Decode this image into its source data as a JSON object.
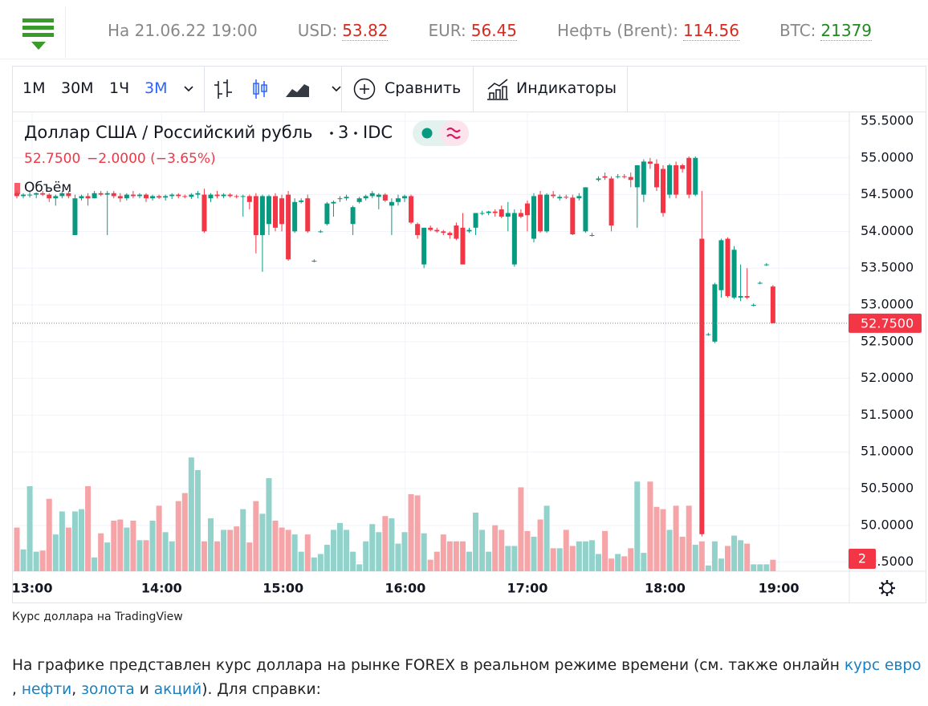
{
  "header": {
    "date": "На 21.06.22 19:00",
    "quotes": [
      {
        "label": "USD:",
        "value": "53.82",
        "color": "#d42a20"
      },
      {
        "label": "EUR:",
        "value": "56.45",
        "color": "#d42a20"
      },
      {
        "label": "Нефть (Brent):",
        "value": "114.56",
        "color": "#d42a20"
      },
      {
        "label": "BTC:",
        "value": "21379",
        "color": "#1f8a1f"
      }
    ]
  },
  "toolbar": {
    "intervals": [
      "1M",
      "30M",
      "1Ч",
      "3М"
    ],
    "active": 3,
    "compare": "Сравнить",
    "indicators": "Индикаторы"
  },
  "chart_data": {
    "type": "candlestick",
    "title": "Доллар США / Российский рубль",
    "interval": "3",
    "source": "IDC",
    "last": "52.7500",
    "change": "−2.0000 (−3.65%)",
    "volume_title": "Объём",
    "up_color": "#089981",
    "down_color": "#f23645",
    "volume_up_color": "#92d2cb",
    "volume_down_color": "#f5a5a8",
    "ylim": [
      49.376,
      55.631
    ],
    "volume_lim": [
      0,
      40
    ],
    "yticks": [
      {
        "value": 55.5,
        "label": "55.5000"
      },
      {
        "value": 55,
        "label": "55.0000"
      },
      {
        "value": 54.5,
        "label": "54.5000"
      },
      {
        "value": 54,
        "label": "54.0000"
      },
      {
        "value": 53.5,
        "label": "53.5000"
      },
      {
        "value": 53,
        "label": "53.0000"
      },
      {
        "value": 52.5,
        "label": "52.5000"
      },
      {
        "value": 52,
        "label": "52.0000"
      },
      {
        "value": 51.5,
        "label": "51.5000"
      },
      {
        "value": 51,
        "label": "51.0000"
      },
      {
        "value": 50.5,
        "label": "50.5000"
      },
      {
        "value": 50,
        "label": "50.0000"
      },
      {
        "value": 49.5,
        "label": "49.5000"
      }
    ],
    "xticks": [
      {
        "value": 2.36,
        "label": "13:00"
      },
      {
        "value": 22.4,
        "label": "14:00"
      },
      {
        "value": 41.2,
        "label": "15:00"
      },
      {
        "value": 60.1,
        "label": "16:00"
      },
      {
        "value": 79.0,
        "label": "17:00"
      },
      {
        "value": 100.3,
        "label": "18:00"
      },
      {
        "value": 117.9,
        "label": "19:00"
      }
    ],
    "last_price": {
      "value": 52.75,
      "label": "52.7500"
    },
    "volume_label": "2",
    "ohlc": [
      [
        54.52,
        54.55,
        54.45,
        54.48
      ],
      [
        54.48,
        54.52,
        54.45,
        54.5
      ],
      [
        54.5,
        54.55,
        54.46,
        54.5
      ],
      [
        54.5,
        54.53,
        54.45,
        54.52
      ],
      [
        54.52,
        54.55,
        54.48,
        54.5
      ],
      [
        54.5,
        54.52,
        54.4,
        54.45
      ],
      [
        54.45,
        54.5,
        54.35,
        54.48
      ],
      [
        54.48,
        54.55,
        54.45,
        54.52
      ],
      [
        54.52,
        54.55,
        54.45,
        54.48
      ],
      [
        53.95,
        54.5,
        53.95,
        54.45
      ],
      [
        54.45,
        54.5,
        54.42,
        54.48
      ],
      [
        54.48,
        54.52,
        54.35,
        54.45
      ],
      [
        54.45,
        54.55,
        54.45,
        54.52
      ],
      [
        54.52,
        54.55,
        54.48,
        54.5
      ],
      [
        54.5,
        54.55,
        53.95,
        54.52
      ],
      [
        54.52,
        54.55,
        54.45,
        54.48
      ],
      [
        54.48,
        54.52,
        54.4,
        54.45
      ],
      [
        54.45,
        54.52,
        54.42,
        54.5
      ],
      [
        54.5,
        54.55,
        54.45,
        54.48
      ],
      [
        54.48,
        54.52,
        54.45,
        54.5
      ],
      [
        54.5,
        54.52,
        54.4,
        54.45
      ],
      [
        54.45,
        54.5,
        54.42,
        54.48
      ],
      [
        54.48,
        54.5,
        54.44,
        54.46
      ],
      [
        54.46,
        54.5,
        54.42,
        54.48
      ],
      [
        54.48,
        54.52,
        54.44,
        54.5
      ],
      [
        54.5,
        54.52,
        54.45,
        54.48
      ],
      [
        54.48,
        54.5,
        54.45,
        54.47
      ],
      [
        54.47,
        54.52,
        54.44,
        54.5
      ],
      [
        54.5,
        54.55,
        54.45,
        54.52
      ],
      [
        54.5,
        54.58,
        53.98,
        54.0
      ],
      [
        54.45,
        54.52,
        54.4,
        54.5
      ],
      [
        54.5,
        54.55,
        54.45,
        54.48
      ],
      [
        54.48,
        54.52,
        54.45,
        54.5
      ],
      [
        54.5,
        54.52,
        54.46,
        54.48
      ],
      [
        54.48,
        54.5,
        54.45,
        54.47
      ],
      [
        54.47,
        54.5,
        54.2,
        54.48
      ],
      [
        54.48,
        54.5,
        54.3,
        54.4
      ],
      [
        54.48,
        54.52,
        53.7,
        53.95
      ],
      [
        53.95,
        54.5,
        53.45,
        54.48
      ],
      [
        54.1,
        54.5,
        53.95,
        54.48
      ],
      [
        54.48,
        54.52,
        54.0,
        54.05
      ],
      [
        54.45,
        54.5,
        54.0,
        54.1
      ],
      [
        54.5,
        54.55,
        53.6,
        53.62
      ],
      [
        54.0,
        54.45,
        53.98,
        54.4
      ],
      [
        54.4,
        54.45,
        54.38,
        54.42
      ],
      [
        54.45,
        54.5,
        53.98,
        54.0
      ],
      [
        53.6,
        53.62,
        53.58,
        53.6
      ],
      [
        54.0,
        54.02,
        53.98,
        54.0
      ],
      [
        54.1,
        54.4,
        54.08,
        54.38
      ],
      [
        54.38,
        54.42,
        54.2,
        54.4
      ],
      [
        54.45,
        54.48,
        54.4,
        54.45
      ],
      [
        54.45,
        54.5,
        54.42,
        54.47
      ],
      [
        54.1,
        54.35,
        53.95,
        54.33
      ],
      [
        54.4,
        54.47,
        54.38,
        54.45
      ],
      [
        54.45,
        54.5,
        54.42,
        54.48
      ],
      [
        54.48,
        54.55,
        54.45,
        54.52
      ],
      [
        54.47,
        54.52,
        54.3,
        54.5
      ],
      [
        54.5,
        54.52,
        54.4,
        54.42
      ],
      [
        54.35,
        54.45,
        53.95,
        54.4
      ],
      [
        54.4,
        54.5,
        54.35,
        54.45
      ],
      [
        54.45,
        54.5,
        54.4,
        54.48
      ],
      [
        54.48,
        54.5,
        54.1,
        54.12
      ],
      [
        54.1,
        54.12,
        53.9,
        53.95
      ],
      [
        53.55,
        54.05,
        53.5,
        54.05
      ],
      [
        54.05,
        54.08,
        54.0,
        54.02
      ],
      [
        54.02,
        54.05,
        53.98,
        54.0
      ],
      [
        54.0,
        54.02,
        53.95,
        53.98
      ],
      [
        53.98,
        54.0,
        53.9,
        53.95
      ],
      [
        54.08,
        54.12,
        53.88,
        53.9
      ],
      [
        54.05,
        54.25,
        53.55,
        53.55
      ],
      [
        54.0,
        54.05,
        53.98,
        54.02
      ],
      [
        54.05,
        54.25,
        53.95,
        54.25
      ],
      [
        54.25,
        54.28,
        54.22,
        54.25
      ],
      [
        54.25,
        54.28,
        54.22,
        54.27
      ],
      [
        54.27,
        54.3,
        54.2,
        54.25
      ],
      [
        54.3,
        54.35,
        54.18,
        54.2
      ],
      [
        54.2,
        54.4,
        54.0,
        54.25
      ],
      [
        53.55,
        54.3,
        53.52,
        54.25
      ],
      [
        54.25,
        54.3,
        54.18,
        54.2
      ],
      [
        54.38,
        54.42,
        54.0,
        54.22
      ],
      [
        53.9,
        54.52,
        53.85,
        54.48
      ],
      [
        54.5,
        54.55,
        53.98,
        54.0
      ],
      [
        54.0,
        54.52,
        53.98,
        54.5
      ],
      [
        54.5,
        54.55,
        54.45,
        54.48
      ],
      [
        54.45,
        54.5,
        54.42,
        54.47
      ],
      [
        54.47,
        54.5,
        54.44,
        54.46
      ],
      [
        54.46,
        54.5,
        53.95,
        53.96
      ],
      [
        54.45,
        54.52,
        54.42,
        54.48
      ],
      [
        54.0,
        54.6,
        53.98,
        54.6
      ],
      [
        53.95,
        53.98,
        53.93,
        53.95
      ],
      [
        54.7,
        54.75,
        54.68,
        54.72
      ],
      [
        54.75,
        54.8,
        54.7,
        54.73
      ],
      [
        54.72,
        54.75,
        54.0,
        54.08
      ],
      [
        54.75,
        54.78,
        54.72,
        54.75
      ],
      [
        54.75,
        54.78,
        54.72,
        54.74
      ],
      [
        54.74,
        54.8,
        54.6,
        54.7
      ],
      [
        54.6,
        54.9,
        54.05,
        54.9
      ],
      [
        54.5,
        54.98,
        54.4,
        54.95
      ],
      [
        54.95,
        55.0,
        54.85,
        54.92
      ],
      [
        54.92,
        54.98,
        54.55,
        54.6
      ],
      [
        54.85,
        54.9,
        54.2,
        54.25
      ],
      [
        54.5,
        54.92,
        54.45,
        54.9
      ],
      [
        54.9,
        54.95,
        54.45,
        54.5
      ],
      [
        54.9,
        54.92,
        54.8,
        54.85
      ],
      [
        55.0,
        55.02,
        54.45,
        54.5
      ],
      [
        54.5,
        55.02,
        54.48,
        55.0
      ],
      [
        53.9,
        54.55,
        49.85,
        49.88
      ],
      [
        52.6,
        52.62,
        52.58,
        52.6
      ],
      [
        52.5,
        53.3,
        52.48,
        53.28
      ],
      [
        53.2,
        53.9,
        53.1,
        53.88
      ],
      [
        53.9,
        53.92,
        53.1,
        53.12
      ],
      [
        53.1,
        53.8,
        53.08,
        53.75
      ],
      [
        53.1,
        53.55,
        53.05,
        53.12
      ],
      [
        53.12,
        53.5,
        53.08,
        53.1
      ],
      [
        53.0,
        53.02,
        52.98,
        53.0
      ],
      [
        53.3,
        53.32,
        53.28,
        53.3
      ],
      [
        53.55,
        53.57,
        53.53,
        53.55
      ],
      [
        53.25,
        53.27,
        52.75,
        52.75
      ]
    ],
    "volume": [
      3.8,
      1.9,
      7.4,
      1.7,
      1.8,
      6.3,
      3.2,
      5.2,
      3.8,
      5.2,
      5.4,
      7.4,
      1.2,
      3.3,
      2.5,
      4.4,
      4.5,
      3.8,
      4.4,
      2.7,
      2.7,
      4.4,
      5.7,
      3.4,
      2.6,
      6.1,
      6.8,
      9.9,
      8.8,
      2.6,
      4.6,
      2.6,
      3.6,
      3.6,
      3.9,
      5.4,
      2.5,
      6.1,
      5.0,
      8.1,
      4.4,
      3.8,
      3.6,
      3.2,
      1.7,
      3.2,
      1.2,
      1.5,
      2.3,
      3.6,
      4.2,
      3.6,
      1.7,
      0.6,
      2.6,
      4.1,
      3.4,
      4.8,
      4.6,
      2.4,
      3.4,
      6.7,
      6.6,
      3.3,
      1.0,
      1.7,
      3.2,
      2.6,
      2.6,
      2.6,
      1.7,
      5.1,
      3.6,
      1.7,
      4.0,
      3.6,
      2.2,
      2.2,
      7.3,
      3.5,
      3.0,
      4.5,
      5.7,
      2.0,
      2.0,
      3.6,
      2.2,
      2.6,
      2.6,
      2.7,
      1.5,
      3.5,
      1.1,
      1.5,
      1.3,
      2.0,
      7.8,
      1.6,
      7.8,
      5.6,
      5.4,
      3.6,
      5.7,
      3.0,
      5.7,
      2.3,
      2.6,
      0.5,
      2.6,
      1.1,
      2.2,
      3.1,
      2.7,
      2.4,
      0.6,
      0.6,
      0.6,
      1.0
    ]
  },
  "caption": "Курс доллара на TradingView",
  "paragraph": {
    "intro": "На графике представлен курс доллара на рынке FOREX в реальном режиме времени (см. также онлайн ",
    "link1": "курс евро",
    "sep1": ", ",
    "link2": "нефти",
    "sep2": ", ",
    "link3": "золота",
    "sep3": " и ",
    "link4": "акций",
    "outro": "). Для справки:"
  }
}
